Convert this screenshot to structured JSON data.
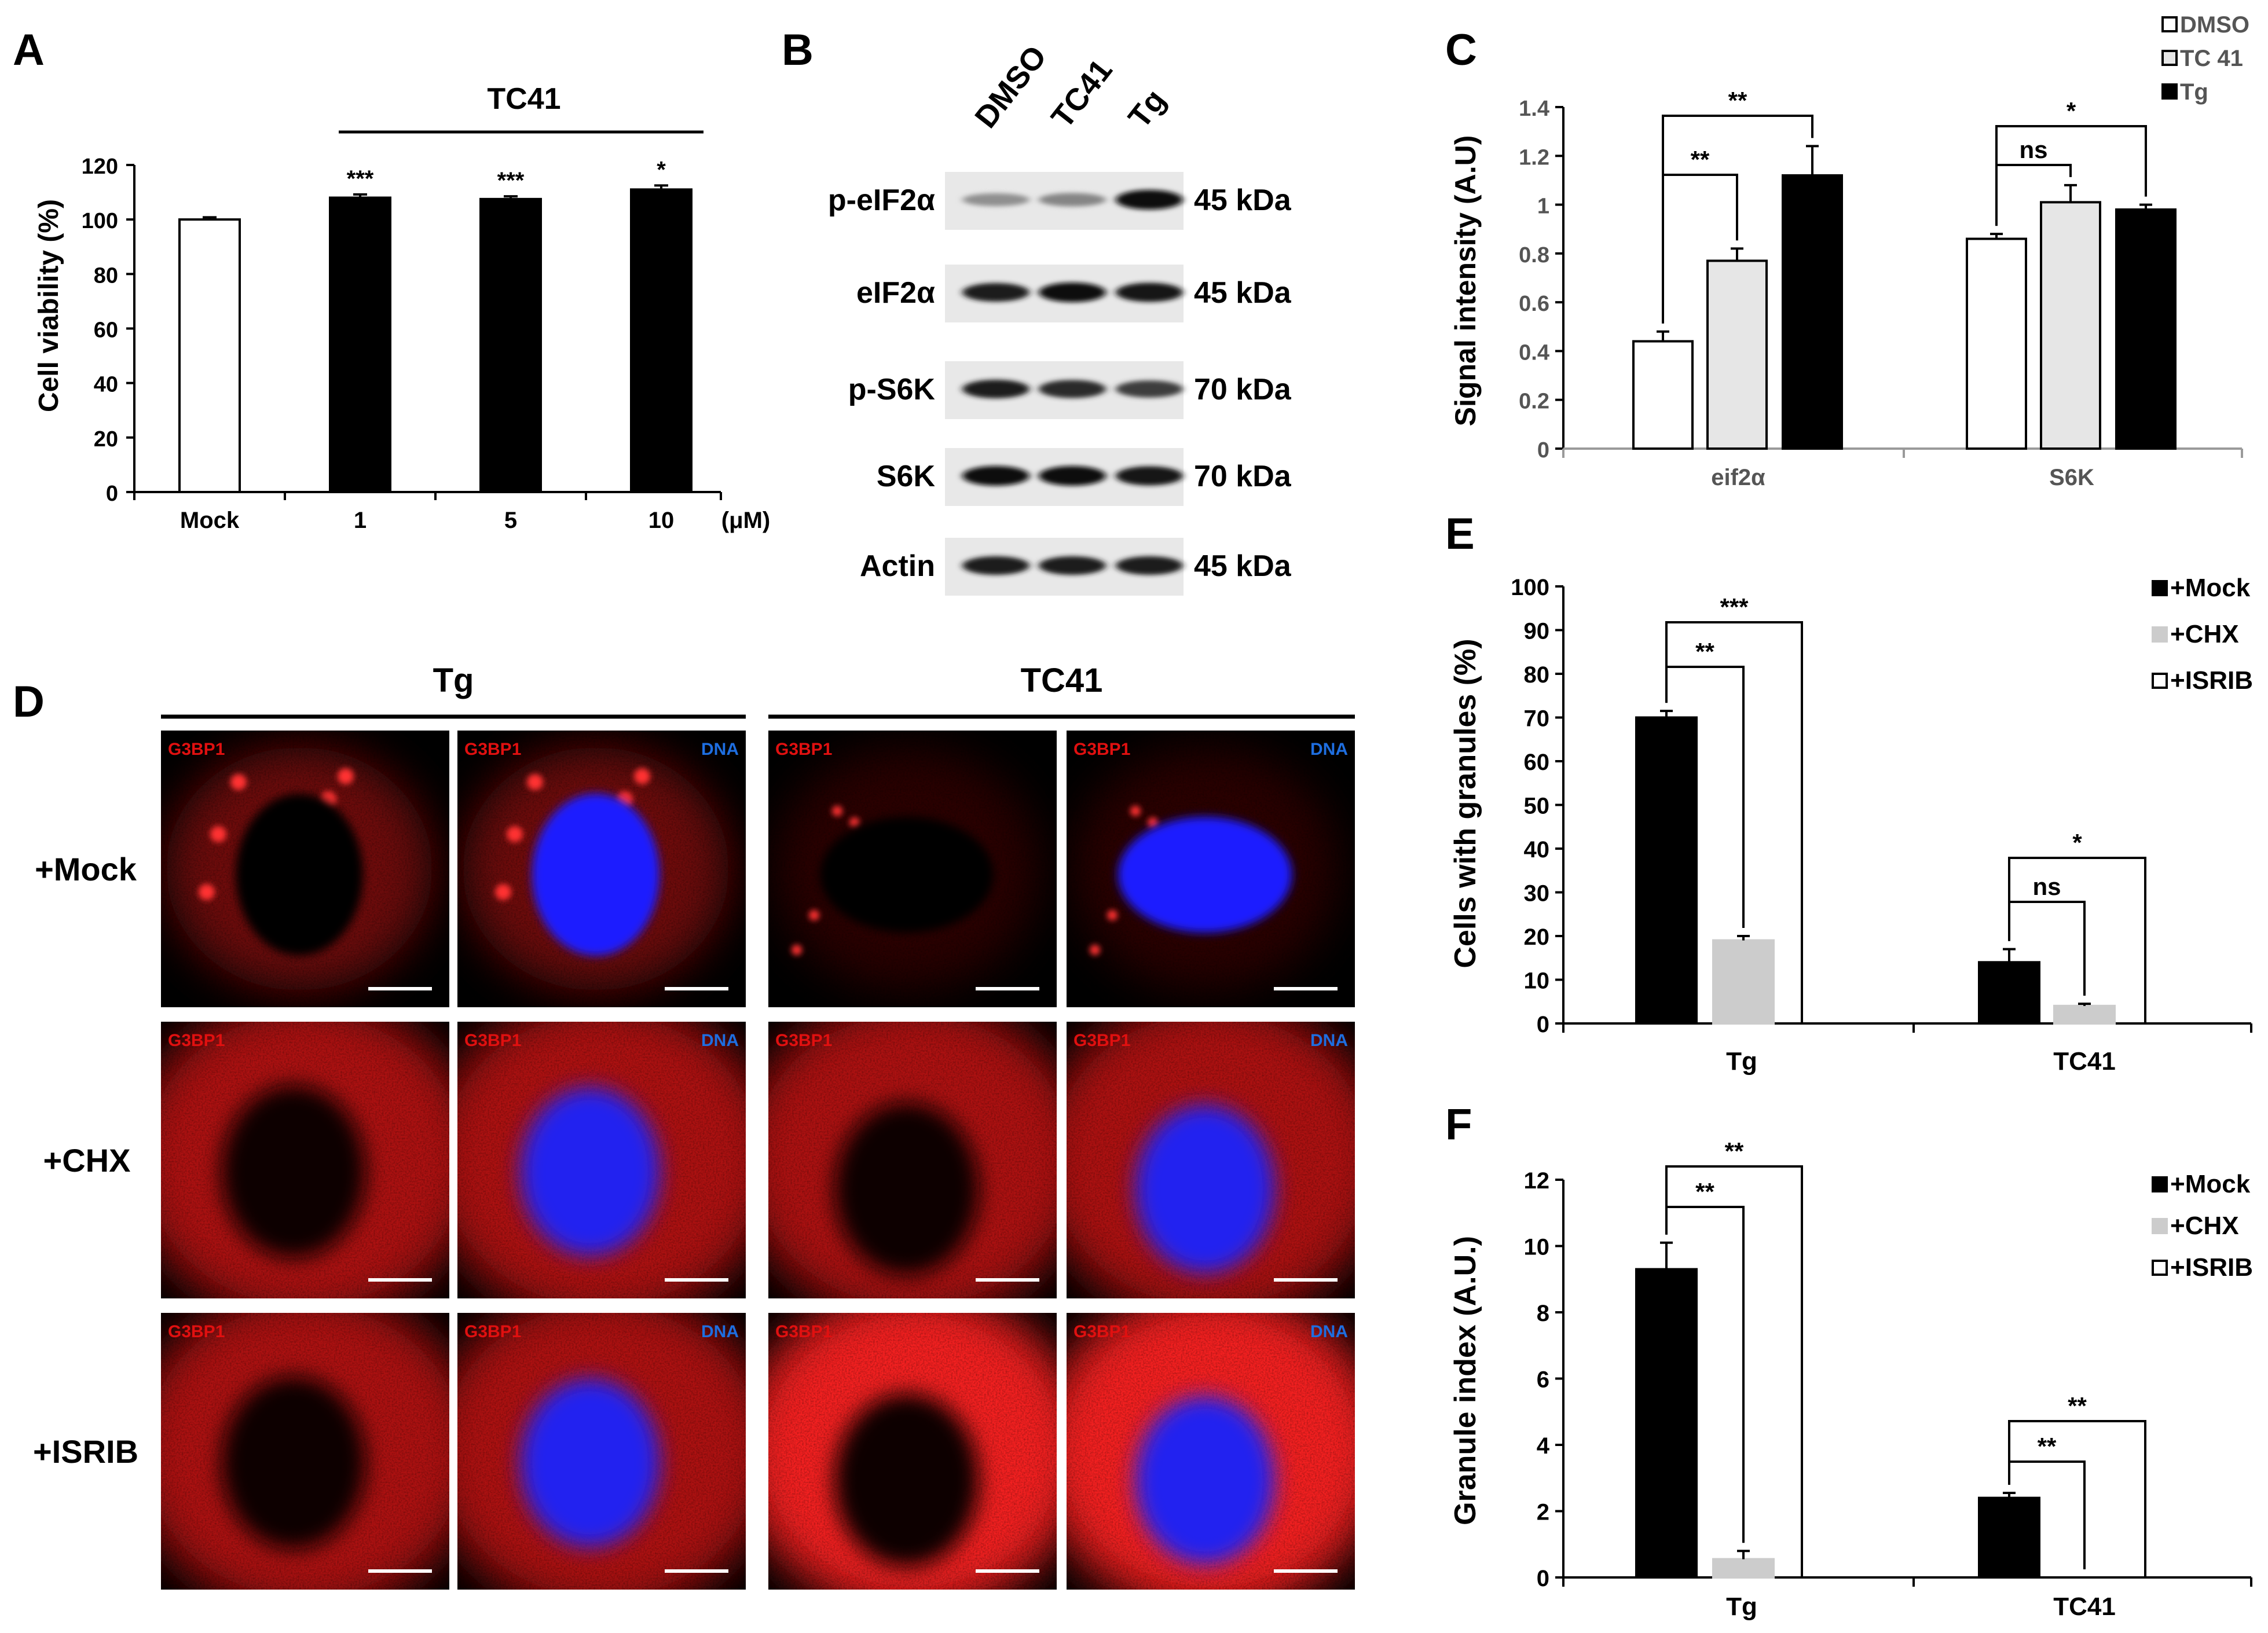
{
  "panels": {
    "A": {
      "letter": "A",
      "chart_data": {
        "type": "bar",
        "categories": [
          "Mock",
          "1",
          "5",
          "10"
        ],
        "values": [
          100,
          108,
          107.5,
          111
        ],
        "errors": [
          0.8,
          1.2,
          1.0,
          1.5
        ],
        "fills": [
          "#ffffff",
          "#000000",
          "#000000",
          "#000000"
        ],
        "sig": [
          "",
          "***",
          "***",
          "*"
        ],
        "ylabel": "Cell viability (%)",
        "unit": "(μM)",
        "group_label": "TC41",
        "ylim": [
          0,
          120
        ],
        "yticks": [
          0,
          20,
          40,
          60,
          80,
          100,
          120
        ]
      }
    },
    "B": {
      "letter": "B",
      "lanes": [
        "DMSO",
        "TC41",
        "Tg"
      ],
      "rows": [
        {
          "label": "p-eIF2α",
          "size": "45 kDa",
          "intensity": [
            0.35,
            0.4,
            1.0
          ]
        },
        {
          "label": "eIF2α",
          "size": "45 kDa",
          "intensity": [
            0.9,
            1.0,
            0.95
          ]
        },
        {
          "label": "p-S6K",
          "size": "70 kDa",
          "intensity": [
            0.9,
            0.85,
            0.75
          ]
        },
        {
          "label": "S6K",
          "size": "70 kDa",
          "intensity": [
            1.0,
            1.0,
            0.95
          ]
        },
        {
          "label": "Actin",
          "size": "45 kDa",
          "intensity": [
            0.9,
            0.9,
            0.9
          ]
        }
      ]
    },
    "C": {
      "letter": "C",
      "chart_data": {
        "type": "bar",
        "categories": [
          "eif2α",
          "S6K"
        ],
        "series": [
          {
            "name": "DMSO",
            "values": [
              0.44,
              0.86
            ],
            "errors": [
              0.04,
              0.02
            ],
            "color": "#ffffff"
          },
          {
            "name": "TC 41",
            "values": [
              0.77,
              1.01
            ],
            "errors": [
              0.05,
              0.07
            ],
            "color": "#e6e6e6"
          },
          {
            "name": "Tg",
            "values": [
              1.12,
              0.98
            ],
            "errors": [
              0.12,
              0.02
            ],
            "color": "#000000"
          }
        ],
        "ylabel": "Signal intensity (A.U)",
        "ylim": [
          0,
          1.4
        ],
        "yticks": [
          "0",
          "0.2",
          "0.4",
          "0.6",
          "0.8",
          "1",
          "1.2",
          "1.4"
        ],
        "brackets": [
          {
            "group": 0,
            "from": 0,
            "to": 1,
            "label": "**"
          },
          {
            "group": 0,
            "from": 0,
            "to": 2,
            "label": "**"
          },
          {
            "group": 1,
            "from": 0,
            "to": 1,
            "label": "ns"
          },
          {
            "group": 1,
            "from": 0,
            "to": 2,
            "label": "*"
          }
        ],
        "legend": "top-right"
      }
    },
    "D": {
      "letter": "D",
      "col_groups": [
        "Tg",
        "TC41"
      ],
      "row_labels": [
        "+Mock",
        "+CHX",
        "+ISRIB"
      ],
      "tag_g3bp1": "G3BP1",
      "tag_dna": "DNA"
    },
    "E": {
      "letter": "E",
      "chart_data": {
        "type": "bar",
        "categories": [
          "Tg",
          "TC41"
        ],
        "series": [
          {
            "name": "+Mock",
            "values": [
              70,
              14
            ],
            "errors": [
              1.5,
              3
            ],
            "color": "#000000"
          },
          {
            "name": "+CHX",
            "values": [
              19,
              4
            ],
            "errors": [
              1,
              0.5
            ],
            "color": "#cccccc"
          },
          {
            "name": "+ISRIB",
            "values": [
              0,
              0
            ],
            "errors": [
              0,
              0
            ],
            "color": "#ffffff"
          }
        ],
        "ylabel": "Cells with granules (%)",
        "ylim": [
          0,
          100
        ],
        "yticks": [
          "0",
          "10",
          "20",
          "30",
          "40",
          "50",
          "60",
          "70",
          "80",
          "90",
          "100"
        ],
        "brackets": [
          {
            "group": 0,
            "from": 0,
            "to": 1,
            "label": "**"
          },
          {
            "group": 0,
            "from": 0,
            "to": 2,
            "label": "***"
          },
          {
            "group": 1,
            "from": 0,
            "to": 1,
            "label": "ns"
          },
          {
            "group": 1,
            "from": 0,
            "to": 2,
            "label": "*"
          }
        ],
        "legend": "top-right"
      }
    },
    "F": {
      "letter": "F",
      "chart_data": {
        "type": "bar",
        "categories": [
          "Tg",
          "TC41"
        ],
        "series": [
          {
            "name": "+Mock",
            "values": [
              9.3,
              2.4
            ],
            "errors": [
              0.8,
              0.15
            ],
            "color": "#000000"
          },
          {
            "name": "+CHX",
            "values": [
              0.55,
              0
            ],
            "errors": [
              0.25,
              0
            ],
            "color": "#cccccc"
          },
          {
            "name": "+ISRIB",
            "values": [
              0,
              0
            ],
            "errors": [
              0,
              0
            ],
            "color": "#ffffff"
          }
        ],
        "ylabel": "Granule index (A.U.)",
        "ylim": [
          0,
          12
        ],
        "yticks": [
          "0",
          "2",
          "4",
          "6",
          "8",
          "10",
          "12"
        ],
        "brackets": [
          {
            "group": 0,
            "from": 0,
            "to": 1,
            "label": "**"
          },
          {
            "group": 0,
            "from": 0,
            "to": 2,
            "label": "**"
          },
          {
            "group": 1,
            "from": 0,
            "to": 1,
            "label": "**"
          },
          {
            "group": 1,
            "from": 0,
            "to": 2,
            "label": "**"
          }
        ],
        "legend": "top-right"
      }
    }
  }
}
